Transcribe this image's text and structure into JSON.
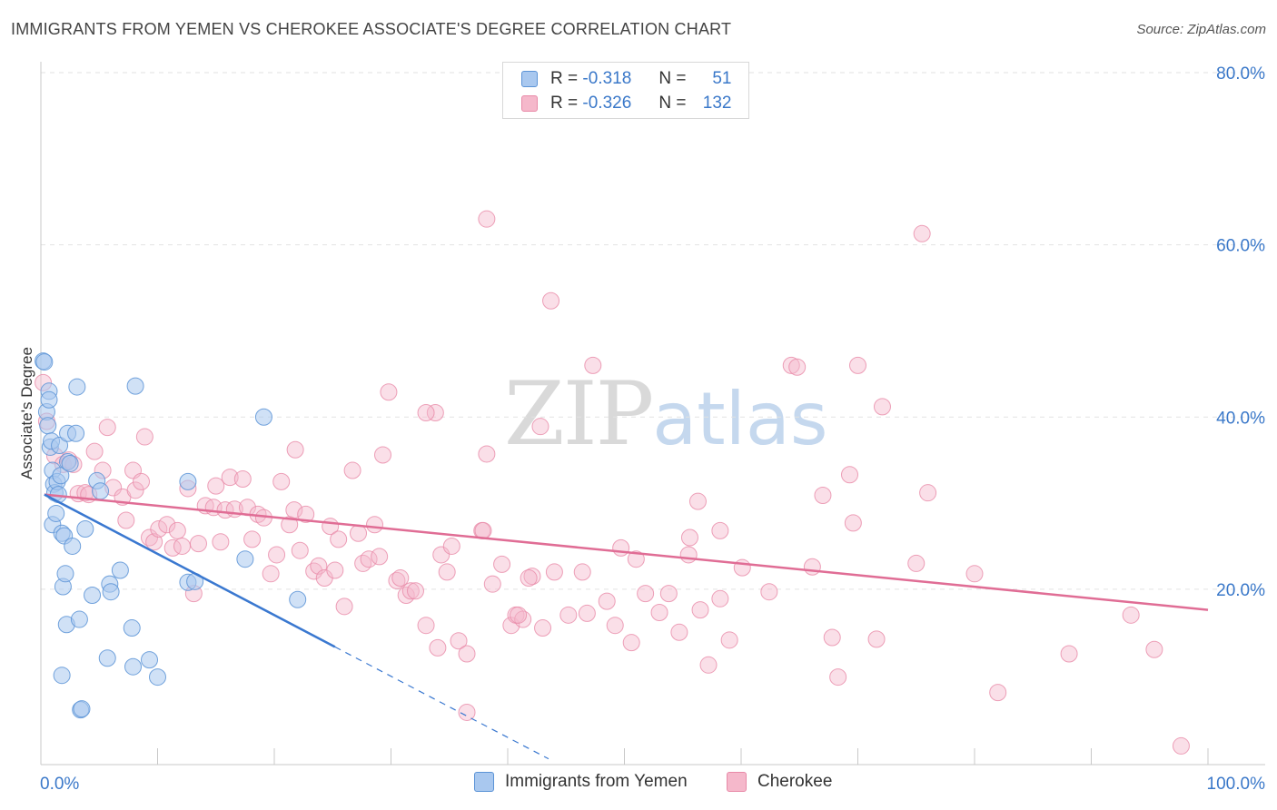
{
  "title": "IMMIGRANTS FROM YEMEN VS CHEROKEE ASSOCIATE'S DEGREE CORRELATION CHART",
  "source": "Source: ZipAtlas.com",
  "watermark": {
    "zip": "ZIP",
    "atlas": "atlas"
  },
  "legend": {
    "series1": {
      "r_label": "R =",
      "r_value": "-0.318",
      "n_label": "N =",
      "n_value": "51"
    },
    "series2": {
      "r_label": "R =",
      "r_value": "-0.326",
      "n_label": "N =",
      "n_value": "132"
    }
  },
  "colors": {
    "blue_fill": "#a9c8ef",
    "blue_stroke": "#5b93d6",
    "blue_line": "#3a78d0",
    "pink_fill": "#f5b8cb",
    "pink_stroke": "#e88aa8",
    "pink_line": "#e06d95",
    "tick_label": "#3a78c9",
    "grid": "#e2e2e2"
  },
  "chart_data": {
    "type": "scatter",
    "title": "IMMIGRANTS FROM YEMEN VS CHEROKEE ASSOCIATE'S DEGREE CORRELATION CHART",
    "xlabel": "",
    "ylabel": "Associate's Degree",
    "xlim": [
      0,
      100
    ],
    "ylim": [
      0,
      80
    ],
    "x_tick_labels": [
      "0.0%",
      "100.0%"
    ],
    "y_ticks": [
      20,
      40,
      60,
      80
    ],
    "y_tick_labels": [
      "20.0%",
      "40.0%",
      "60.0%",
      "80.0%"
    ],
    "grid": "horizontal dashed",
    "legend_position": "top-center",
    "series": [
      {
        "name": "Immigrants from Yemen",
        "color": "#a9c8ef",
        "points": [
          [
            0.2,
            46.5
          ],
          [
            0.3,
            46.4
          ],
          [
            0.5,
            40.6
          ],
          [
            0.6,
            39.0
          ],
          [
            0.7,
            43.0
          ],
          [
            0.7,
            42.0
          ],
          [
            0.8,
            36.5
          ],
          [
            0.9,
            37.2
          ],
          [
            1.0,
            27.5
          ],
          [
            1.0,
            33.8
          ],
          [
            1.1,
            32.2
          ],
          [
            1.2,
            31.2
          ],
          [
            1.3,
            28.8
          ],
          [
            1.4,
            32.5
          ],
          [
            1.5,
            31.0
          ],
          [
            1.6,
            36.7
          ],
          [
            1.7,
            33.2
          ],
          [
            1.8,
            26.5
          ],
          [
            1.9,
            20.3
          ],
          [
            2.0,
            26.2
          ],
          [
            2.1,
            21.8
          ],
          [
            2.2,
            15.9
          ],
          [
            2.3,
            34.8
          ],
          [
            2.3,
            38.1
          ],
          [
            2.5,
            34.6
          ],
          [
            2.7,
            25.0
          ],
          [
            3.0,
            38.1
          ],
          [
            3.1,
            43.5
          ],
          [
            3.3,
            16.5
          ],
          [
            3.4,
            6.0
          ],
          [
            3.5,
            6.1
          ],
          [
            3.8,
            27.0
          ],
          [
            4.4,
            19.3
          ],
          [
            4.8,
            32.6
          ],
          [
            5.1,
            31.4
          ],
          [
            5.7,
            12.0
          ],
          [
            5.9,
            20.6
          ],
          [
            6.0,
            19.7
          ],
          [
            6.8,
            22.2
          ],
          [
            7.8,
            15.5
          ],
          [
            7.9,
            11.0
          ],
          [
            8.1,
            43.6
          ],
          [
            9.3,
            11.8
          ],
          [
            10.0,
            9.8
          ],
          [
            12.6,
            20.8
          ],
          [
            12.6,
            32.5
          ],
          [
            13.2,
            20.9
          ],
          [
            17.5,
            23.5
          ],
          [
            19.1,
            40.0
          ],
          [
            22.0,
            18.8
          ],
          [
            1.8,
            10.0
          ]
        ],
        "trend": {
          "x": [
            0.3,
            25.2
          ],
          "y": [
            31.0,
            13.3
          ],
          "dashed_to": [
            43.5,
            0.3
          ]
        }
      },
      {
        "name": "Cherokee",
        "color": "#f5b8cb",
        "points": [
          [
            0.2,
            44.0
          ],
          [
            0.5,
            39.5
          ],
          [
            1.2,
            35.5
          ],
          [
            1.9,
            34.5
          ],
          [
            2.4,
            35.0
          ],
          [
            2.8,
            34.5
          ],
          [
            3.2,
            31.1
          ],
          [
            3.8,
            31.2
          ],
          [
            4.1,
            31.0
          ],
          [
            4.6,
            36.0
          ],
          [
            5.3,
            33.8
          ],
          [
            5.7,
            38.8
          ],
          [
            6.2,
            31.8
          ],
          [
            7.0,
            30.7
          ],
          [
            7.3,
            28.0
          ],
          [
            7.9,
            33.8
          ],
          [
            8.1,
            31.5
          ],
          [
            8.6,
            32.5
          ],
          [
            8.9,
            37.7
          ],
          [
            9.3,
            26.0
          ],
          [
            9.7,
            25.5
          ],
          [
            10.1,
            27.0
          ],
          [
            10.8,
            27.5
          ],
          [
            11.3,
            24.8
          ],
          [
            11.7,
            26.8
          ],
          [
            12.1,
            25.0
          ],
          [
            12.6,
            31.7
          ],
          [
            13.1,
            19.5
          ],
          [
            13.5,
            25.3
          ],
          [
            14.1,
            29.7
          ],
          [
            14.8,
            29.5
          ],
          [
            15.0,
            32.0
          ],
          [
            15.4,
            25.5
          ],
          [
            15.8,
            29.2
          ],
          [
            16.2,
            33.0
          ],
          [
            16.6,
            29.3
          ],
          [
            17.3,
            32.8
          ],
          [
            17.7,
            29.5
          ],
          [
            18.1,
            25.8
          ],
          [
            18.6,
            28.7
          ],
          [
            19.1,
            28.3
          ],
          [
            19.7,
            21.8
          ],
          [
            20.2,
            24.0
          ],
          [
            20.6,
            32.5
          ],
          [
            21.3,
            27.5
          ],
          [
            21.7,
            29.2
          ],
          [
            22.2,
            24.5
          ],
          [
            22.7,
            28.7
          ],
          [
            23.4,
            22.1
          ],
          [
            23.8,
            22.7
          ],
          [
            24.3,
            21.3
          ],
          [
            24.8,
            27.3
          ],
          [
            25.2,
            22.2
          ],
          [
            25.5,
            25.8
          ],
          [
            26.0,
            18.0
          ],
          [
            26.7,
            33.8
          ],
          [
            27.2,
            26.5
          ],
          [
            27.6,
            23.0
          ],
          [
            28.1,
            23.5
          ],
          [
            28.6,
            27.5
          ],
          [
            29.0,
            23.8
          ],
          [
            29.3,
            35.6
          ],
          [
            29.8,
            42.9
          ],
          [
            30.5,
            21.0
          ],
          [
            30.8,
            21.3
          ],
          [
            31.3,
            19.3
          ],
          [
            31.7,
            19.8
          ],
          [
            32.1,
            19.8
          ],
          [
            33.0,
            15.8
          ],
          [
            34.0,
            13.2
          ],
          [
            34.3,
            24.0
          ],
          [
            34.8,
            22.0
          ],
          [
            35.2,
            25.0
          ],
          [
            35.8,
            14.0
          ],
          [
            36.5,
            12.5
          ],
          [
            37.8,
            26.8
          ],
          [
            38.2,
            35.7
          ],
          [
            38.7,
            20.6
          ],
          [
            39.5,
            22.9
          ],
          [
            40.3,
            15.8
          ],
          [
            40.7,
            17.0
          ],
          [
            41.3,
            16.5
          ],
          [
            42.1,
            21.5
          ],
          [
            43.0,
            15.5
          ],
          [
            44.0,
            22.0
          ],
          [
            45.2,
            17.0
          ],
          [
            46.4,
            22.0
          ],
          [
            46.8,
            17.2
          ],
          [
            47.3,
            46.0
          ],
          [
            48.5,
            18.6
          ],
          [
            49.2,
            15.8
          ],
          [
            49.7,
            24.8
          ],
          [
            50.6,
            13.8
          ],
          [
            51.0,
            23.5
          ],
          [
            51.8,
            19.5
          ],
          [
            53.0,
            17.3
          ],
          [
            53.8,
            19.5
          ],
          [
            54.7,
            15.0
          ],
          [
            55.5,
            24.0
          ],
          [
            55.6,
            26.0
          ],
          [
            56.3,
            30.2
          ],
          [
            56.5,
            17.6
          ],
          [
            57.2,
            11.2
          ],
          [
            58.2,
            26.8
          ],
          [
            58.2,
            18.9
          ],
          [
            59.0,
            14.1
          ],
          [
            60.1,
            22.5
          ],
          [
            62.4,
            19.7
          ],
          [
            64.3,
            46.0
          ],
          [
            66.1,
            22.6
          ],
          [
            67.0,
            30.9
          ],
          [
            67.8,
            14.4
          ],
          [
            68.3,
            9.8
          ],
          [
            69.3,
            33.3
          ],
          [
            69.6,
            27.7
          ],
          [
            71.6,
            14.2
          ],
          [
            72.1,
            41.2
          ],
          [
            75.0,
            23.0
          ],
          [
            76.0,
            31.2
          ],
          [
            80.0,
            21.8
          ],
          [
            82.0,
            8.0
          ],
          [
            88.1,
            12.5
          ],
          [
            93.4,
            17.0
          ],
          [
            95.4,
            13.0
          ],
          [
            97.7,
            1.8
          ],
          [
            42.8,
            38.9
          ],
          [
            33.8,
            40.5
          ],
          [
            36.5,
            5.7
          ],
          [
            40.9,
            17.0
          ],
          [
            21.8,
            36.2
          ],
          [
            37.9,
            26.8
          ],
          [
            41.8,
            21.3
          ]
        ],
        "trend": {
          "x": [
            0.3,
            100.0
          ],
          "y": [
            31.0,
            17.6
          ]
        }
      }
    ]
  },
  "extra_pink_high": [
    [
      38.2,
      63.0
    ],
    [
      75.5,
      61.3
    ],
    [
      43.7,
      53.5
    ],
    [
      64.8,
      45.8
    ],
    [
      70.0,
      46.0
    ],
    [
      33.0,
      40.5
    ]
  ]
}
